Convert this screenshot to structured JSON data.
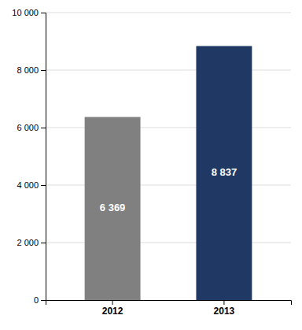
{
  "chart_data": {
    "type": "bar",
    "categories": [
      "2012",
      "2013"
    ],
    "values": [
      6369,
      8837
    ],
    "value_labels": [
      "6 369",
      "8 837"
    ],
    "colors": [
      "#808080",
      "#1F3864"
    ],
    "ylim": [
      0,
      10000
    ],
    "yticks": [
      0,
      {
        "value": 2000,
        "label": "2 000"
      },
      {
        "value": 4000,
        "label": "4 000"
      },
      {
        "value": 6000,
        "label": "6 000"
      },
      {
        "value": 8000,
        "label": "8 000"
      },
      {
        "value": 10000,
        "label": "10 000"
      }
    ],
    "grid": true,
    "data_labels": true
  }
}
